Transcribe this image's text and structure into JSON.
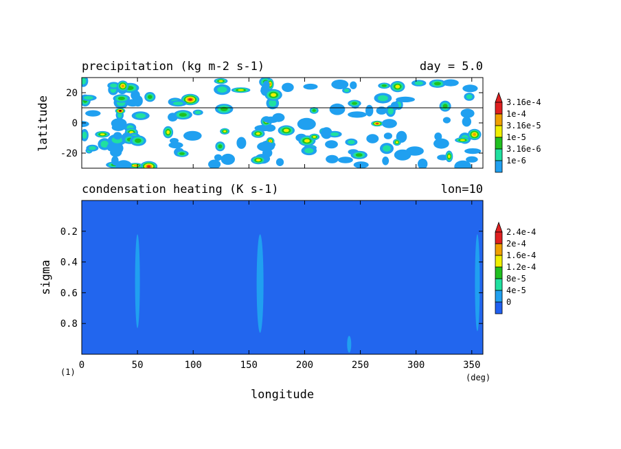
{
  "chart_data": [
    {
      "type": "heatmap",
      "title": "precipitation (kg m-2 s-1)",
      "right_title": "day = 5.0",
      "ylabel": "latitude",
      "xlim": [
        0,
        360
      ],
      "ylim": [
        -30,
        30
      ],
      "y_ticks": [
        "20",
        "0",
        "-20"
      ],
      "reference_line_lat": 10,
      "colorbar_labels": [
        "3.16e-4",
        "1e-4",
        "3.16e-5",
        "1e-5",
        "3.16e-6",
        "1e-6"
      ],
      "colorbar_colors": [
        "#e02020",
        "#f0a000",
        "#f0f000",
        "#20c020",
        "#20e0a0",
        "#20a0f0"
      ],
      "field_note": "scattered patchy precipitation cells throughout the tropics"
    },
    {
      "type": "heatmap",
      "title": "condensation heating (K s-1)",
      "right_title": "lon=10",
      "ylabel": "sigma",
      "xlabel": "longitude",
      "x_unit": "(deg)",
      "frame_label": "(1)",
      "xlim": [
        0,
        360
      ],
      "ylim": [
        1.0,
        0.0
      ],
      "x_ticks": [
        "0",
        "50",
        "100",
        "150",
        "200",
        "250",
        "300",
        "350"
      ],
      "y_ticks": [
        "0.2",
        "0.4",
        "0.6",
        "0.8"
      ],
      "colorbar_labels": [
        "2.4e-4",
        "2e-4",
        "1.6e-4",
        "1.2e-4",
        "8e-5",
        "4e-5",
        "0"
      ],
      "colorbar_colors": [
        "#e02020",
        "#f0a000",
        "#f0f000",
        "#20c020",
        "#20e0a0",
        "#20a0f0",
        "#2060f0"
      ],
      "background_color": "#2266ee",
      "features": [
        {
          "longitude": 50,
          "sigma_top": 0.22,
          "sigma_bottom": 0.83
        },
        {
          "longitude": 160,
          "sigma_top": 0.22,
          "sigma_bottom": 0.86
        },
        {
          "longitude": 240,
          "sigma_top": 0.88,
          "sigma_bottom": 0.99
        },
        {
          "longitude": 355,
          "sigma_top": 0.22,
          "sigma_bottom": 0.85
        }
      ]
    }
  ]
}
